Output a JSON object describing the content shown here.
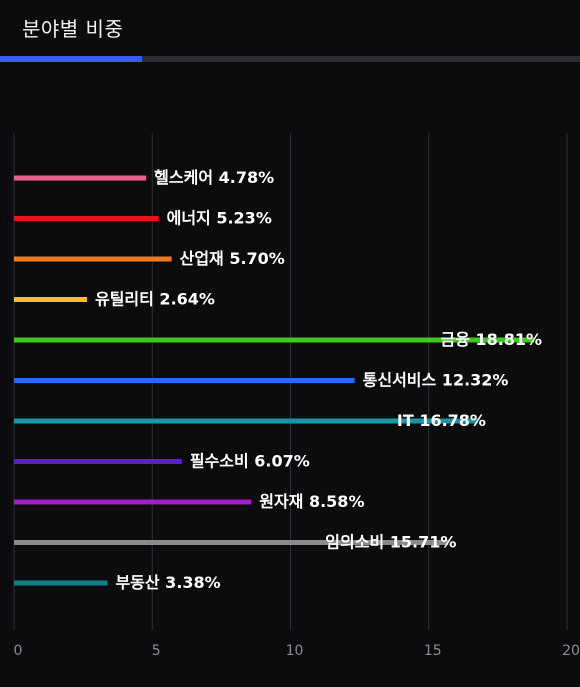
{
  "header": {
    "title": "분야별 비중"
  },
  "colors": {
    "background": "#0c0c0e",
    "grid": "#2f3137",
    "tab_active": "#3a5ee0",
    "tab_track": "#2b2d33"
  },
  "chart_data": {
    "type": "bar",
    "orientation": "horizontal",
    "categories": [
      "헬스케어",
      "에너지",
      "산업재",
      "유틸리티",
      "금융",
      "통신서비스",
      "IT",
      "필수소비",
      "원자재",
      "임의소비",
      "부동산"
    ],
    "values": [
      4.78,
      5.23,
      5.7,
      2.64,
      18.81,
      12.32,
      16.78,
      6.07,
      8.58,
      15.71,
      3.38
    ],
    "labels": [
      "헬스케어 4.78%",
      "에너지 5.23%",
      "산업재 5.70%",
      "유틸리티 2.64%",
      "금융 18.81%",
      "통신서비스 12.32%",
      "IT 16.78%",
      "필수소비 6.07%",
      "원자재 8.58%",
      "임의소비 15.71%",
      "부동산 3.38%"
    ],
    "bar_colors": [
      "#ec5f8a",
      "#e8151a",
      "#f07a22",
      "#f5c02e",
      "#3ec81e",
      "#1f6ff0",
      "#1895a8",
      "#5b1fd6",
      "#a11ec4",
      "#8a8a8a",
      "#137f8a"
    ],
    "xlim": [
      0,
      20
    ],
    "xticks": [
      "0",
      "5",
      "10",
      "15",
      "20"
    ],
    "xtick_values": [
      0,
      5,
      10,
      15,
      20
    ],
    "grid": true,
    "xlabel": "",
    "ylabel": ""
  }
}
